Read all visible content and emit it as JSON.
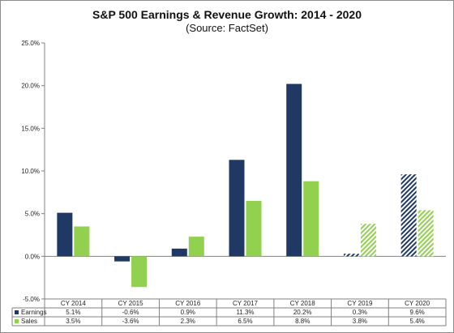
{
  "chart_data": {
    "type": "bar",
    "title": "S&P 500 Earnings & Revenue Growth:  2014 - 2020",
    "subtitle": "(Source: FactSet)",
    "categories": [
      "CY 2014",
      "CY 2015",
      "CY 2016",
      "CY 2017",
      "CY 2018",
      "CY 2019",
      "CY 2020"
    ],
    "series": [
      {
        "name": "Earnings",
        "color": "#1f3864",
        "values": [
          5.1,
          -0.6,
          0.9,
          11.3,
          20.2,
          0.3,
          9.6
        ],
        "labels": [
          "5.1%",
          "-0.6%",
          "0.9%",
          "11.3%",
          "20.2%",
          "0.3%",
          "9.6%"
        ],
        "hatched_from_index": 5
      },
      {
        "name": "Sales",
        "color": "#92d050",
        "values": [
          3.5,
          -3.6,
          2.3,
          6.5,
          8.8,
          3.8,
          5.4
        ],
        "labels": [
          "3.5%",
          "-3.6%",
          "2.3%",
          "6.5%",
          "8.8%",
          "3.8%",
          "5.4%"
        ],
        "hatched_from_index": 5
      }
    ],
    "ylim": [
      -5,
      25
    ],
    "yticks": [
      25,
      20,
      15,
      10,
      5,
      0,
      -5
    ],
    "ytick_labels": [
      "25.0%",
      "20.0%",
      "15.0%",
      "10.0%",
      "5.0%",
      "0.0%",
      "-5.0%"
    ],
    "grid": "none",
    "legend": "data-table",
    "xlabel": "",
    "ylabel": ""
  }
}
